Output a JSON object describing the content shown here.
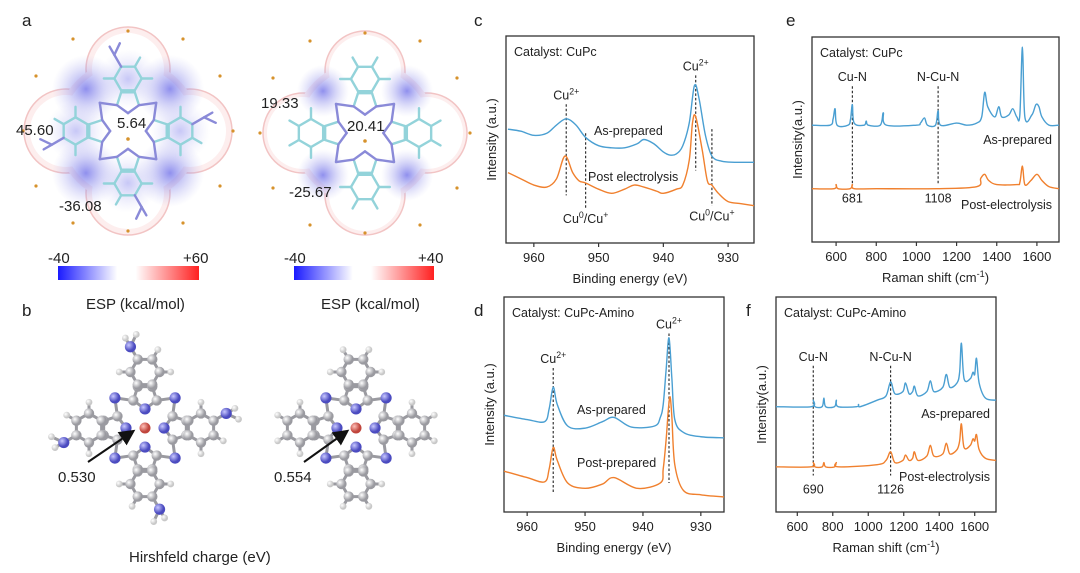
{
  "panel_labels": {
    "a": "a",
    "b": "b",
    "c": "c",
    "d": "d",
    "e": "e",
    "f": "f"
  },
  "panel_a": {
    "left": {
      "values": [
        "45.60",
        "5.64",
        "-36.08"
      ],
      "colorbar_min": "-40",
      "colorbar_max": "+60",
      "colorbar_label": "ESP (kcal/mol)"
    },
    "right": {
      "values": [
        "19.33",
        "20.41",
        "-25.67"
      ],
      "colorbar_min": "-40",
      "colorbar_max": "+40",
      "colorbar_label": "ESP (kcal/mol)"
    },
    "colorbar_colors": [
      "#1a1aff",
      "#ffffff",
      "#ff2020"
    ]
  },
  "panel_b": {
    "left_value": "0.530",
    "right_value": "0.554",
    "caption": "Hirshfeld charge (eV)",
    "atom_colors": {
      "C": "#b8b8bc",
      "N": "#6a6ad8",
      "H": "#f4f4f4",
      "Cu": "#d4685e"
    }
  },
  "chart_data": [
    {
      "panel": "c",
      "type": "line",
      "title": "Catalyst: CuPc",
      "xlabel": "Binding energy (eV)",
      "ylabel": "Intensity (a.u.)",
      "xlim": [
        964.3,
        926
      ],
      "ylim": [
        0,
        100
      ],
      "xticks": [
        960,
        950,
        940,
        930
      ],
      "xtick_labels": [
        "960",
        "950",
        "940",
        "930"
      ],
      "grid": false,
      "series": [
        {
          "name": "As-prepared",
          "color": "#4a9fd2",
          "x": [
            964,
            962,
            960,
            958,
            956.5,
            955,
            953.5,
            952,
            950,
            948,
            946,
            944,
            943,
            941.5,
            940,
            939,
            938,
            937,
            936,
            935.2,
            934.5,
            933.5,
            932.5,
            931,
            929,
            926
          ],
          "y": [
            55,
            54,
            52,
            53,
            57,
            60,
            57,
            51,
            47,
            46,
            46,
            48,
            50,
            48,
            44,
            42.5,
            43,
            47,
            58,
            76,
            70,
            52,
            42,
            39.5,
            39,
            39
          ]
        },
        {
          "name": "Post electrolysis",
          "color": "#f0802e",
          "x": [
            964,
            962,
            960,
            958,
            956.5,
            955.2,
            954,
            953,
            952,
            950,
            948,
            946,
            944.5,
            943,
            941,
            940,
            938,
            937,
            936,
            935.5,
            935,
            934,
            933.2,
            932.5,
            931.5,
            930,
            928,
            926
          ],
          "y": [
            34,
            31,
            28,
            27,
            31,
            42,
            34,
            30,
            29,
            26,
            24,
            26,
            28,
            27,
            25,
            24,
            26,
            28,
            40,
            58,
            61,
            45,
            30,
            28,
            24,
            20,
            19,
            18
          ]
        }
      ],
      "annotations": [
        {
          "x": 955,
          "y_range": [
            23,
            67
          ],
          "label": [
            {
              "t": "Cu"
            },
            {
              "t": "2+",
              "sup": true
            }
          ],
          "pos": "top"
        },
        {
          "x": 952,
          "y_range": [
            17,
            53
          ],
          "label": [
            {
              "t": "Cu"
            },
            {
              "t": "0",
              "sup": true
            },
            {
              "t": "/Cu"
            },
            {
              "t": "+",
              "sup": true
            }
          ],
          "pos": "bottom"
        },
        {
          "x": 935,
          "y_range": [
            35,
            81
          ],
          "label": [
            {
              "t": "Cu"
            },
            {
              "t": "2+",
              "sup": true
            }
          ],
          "pos": "top"
        },
        {
          "x": 932.5,
          "y_range": [
            18,
            55
          ],
          "label": [
            {
              "t": "Cu"
            },
            {
              "t": "0",
              "sup": true
            },
            {
              "t": "/Cu"
            },
            {
              "t": "+",
              "sup": true
            }
          ],
          "pos": "bottom"
        }
      ]
    },
    {
      "panel": "d",
      "type": "line",
      "title": "Catalyst: CuPc-Amino",
      "xlabel": "Binding energy (eV)",
      "ylabel": "Intensity (a.u.)",
      "xlim": [
        964,
        926
      ],
      "ylim": [
        0,
        100
      ],
      "xticks": [
        960,
        950,
        940,
        930
      ],
      "xtick_labels": [
        "960",
        "950",
        "940",
        "930"
      ],
      "grid": false,
      "series": [
        {
          "name": "As-prepared",
          "color": "#4a9fd2",
          "x": [
            964,
            960,
            957,
            956.2,
            955.5,
            954.8,
            953,
            950,
            947,
            945,
            942,
            938,
            937,
            936.5,
            936,
            935.5,
            935,
            934.5,
            933,
            930,
            926
          ],
          "y": [
            45,
            43,
            42,
            48,
            58,
            50,
            40,
            39,
            42,
            44,
            39.5,
            40,
            44,
            50,
            66,
            81,
            62,
            43,
            37,
            35,
            34.5
          ]
        },
        {
          "name": "Post-prepared",
          "color": "#f0802e",
          "x": [
            964,
            960,
            957,
            956.2,
            955.5,
            954.8,
            953,
            950,
            947,
            945,
            941,
            937,
            936.5,
            936,
            935.6,
            935.3,
            935,
            934.5,
            933,
            930,
            926
          ],
          "y": [
            19,
            16,
            14,
            20,
            30,
            24,
            13.5,
            11,
            13,
            16,
            11,
            13.5,
            20,
            33.5,
            48,
            53.5,
            44,
            22,
            10,
            8,
            7
          ]
        }
      ],
      "annotations": [
        {
          "x": 955.5,
          "y_range": [
            9,
            67
          ],
          "label": [
            {
              "t": "Cu"
            },
            {
              "t": "2+",
              "sup": true
            }
          ],
          "pos": "top"
        },
        {
          "x": 935.5,
          "y_range": [
            13.5,
            83
          ],
          "label": [
            {
              "t": "Cu"
            },
            {
              "t": "2+",
              "sup": true
            }
          ],
          "pos": "top"
        }
      ]
    },
    {
      "panel": "e",
      "type": "line",
      "title": "Catalyst: CuPc",
      "xlabel": [
        {
          "t": "Raman shift (cm"
        },
        {
          "t": "-1",
          "sup": true
        },
        {
          "t": ")"
        }
      ],
      "ylabel": "Intensity(a.u.)",
      "xlim": [
        480,
        1710
      ],
      "ylim": [
        0,
        100
      ],
      "xticks": [
        600,
        800,
        1000,
        1200,
        1400,
        1600
      ],
      "xtick_labels": [
        "600",
        "800",
        "1000",
        "1200",
        "1400",
        "1600"
      ],
      "grid": false,
      "series": [
        {
          "name": "As-prepared",
          "color": "#4a9fd2",
          "x": [
            480,
            570,
            585,
            595,
            605,
            660,
            672,
            681,
            690,
            740,
            750,
            760,
            820,
            835,
            850,
            1000,
            1020,
            1040,
            1055,
            1095,
            1108,
            1120,
            1200,
            1250,
            1300,
            1325,
            1340,
            1355,
            1390,
            1410,
            1425,
            1460,
            1480,
            1500,
            1515,
            1528,
            1540,
            1575,
            1595,
            1610,
            1625,
            1660,
            1710
          ],
          "y": [
            57,
            57,
            60,
            65,
            57,
            57,
            60,
            67,
            58,
            57,
            59,
            57,
            57,
            63,
            57,
            57,
            58,
            60.5,
            57,
            57,
            64,
            57,
            58,
            57,
            58,
            61,
            73,
            66,
            61,
            66,
            61,
            62,
            65,
            61,
            62,
            95,
            61,
            62,
            67,
            66,
            61,
            57,
            57
          ]
        },
        {
          "name": "Post-electrolysis",
          "color": "#f0802e",
          "x": [
            480,
            590,
            600,
            610,
            670,
            681,
            690,
            800,
            1100,
            1300,
            1320,
            1340,
            1360,
            1400,
            1500,
            1515,
            1528,
            1540,
            1570,
            1600,
            1625,
            1660,
            1710
          ],
          "y": [
            26,
            26,
            28,
            26,
            26,
            28,
            26,
            26,
            26,
            27,
            31,
            33,
            30,
            28,
            28,
            29,
            37,
            28,
            30,
            33,
            30,
            27,
            26
          ]
        }
      ],
      "annotations": [
        {
          "x": 681,
          "y_range": [
            28,
            76
          ],
          "label": [
            {
              "t": "Cu-N"
            }
          ],
          "pos": "top",
          "value_label": "681"
        },
        {
          "x": 1108,
          "y_range": [
            28,
            76
          ],
          "label": [
            {
              "t": "N-Cu-N"
            }
          ],
          "pos": "top",
          "value_label": "1108"
        }
      ]
    },
    {
      "panel": "f",
      "type": "line",
      "title": "Catalyst: CuPc-Amino",
      "xlabel": [
        {
          "t": "Raman shift (cm"
        },
        {
          "t": "-1",
          "sup": true
        },
        {
          "t": ")"
        }
      ],
      "ylabel": "Intensity(a.u.)",
      "xlim": [
        480,
        1720
      ],
      "ylim": [
        0,
        100
      ],
      "xticks": [
        600,
        800,
        1000,
        1200,
        1400,
        1600
      ],
      "xtick_labels": [
        "600",
        "800",
        "1000",
        "1200",
        "1400",
        "1600"
      ],
      "grid": false,
      "series": [
        {
          "name": "As-prepared",
          "color": "#4a9fd2",
          "x": [
            480,
            680,
            690,
            700,
            740,
            750,
            760,
            810,
            820,
            830,
            935,
            945,
            955,
            1050,
            1100,
            1126,
            1150,
            1195,
            1210,
            1230,
            1250,
            1260,
            1280,
            1330,
            1350,
            1370,
            1420,
            1440,
            1460,
            1500,
            1515,
            1525,
            1540,
            1575,
            1590,
            1600,
            1610,
            1625,
            1660,
            1720
          ],
          "y": [
            49,
            49,
            52,
            49,
            49,
            53,
            49,
            49,
            52,
            49,
            49,
            50,
            49,
            52,
            54,
            60.5,
            55,
            56,
            60,
            55,
            56,
            58.5,
            54,
            56,
            61,
            56,
            58,
            64,
            58,
            60,
            65,
            78.5,
            62,
            62,
            65,
            64,
            71.5,
            60,
            53,
            52
          ]
        },
        {
          "name": "Post-electrolysis",
          "color": "#f0802e",
          "x": [
            480,
            680,
            690,
            700,
            740,
            750,
            760,
            810,
            820,
            830,
            1050,
            1100,
            1126,
            1150,
            1195,
            1210,
            1230,
            1250,
            1260,
            1280,
            1330,
            1350,
            1370,
            1420,
            1440,
            1460,
            1500,
            1515,
            1525,
            1540,
            1575,
            1590,
            1600,
            1610,
            1625,
            1660,
            1720
          ],
          "y": [
            21,
            21,
            23,
            21,
            21,
            23,
            21,
            21,
            23,
            21,
            22,
            24,
            28,
            23,
            24,
            26.5,
            24,
            25,
            28,
            24,
            26,
            31,
            26,
            27,
            32,
            27,
            29,
            33,
            41,
            30,
            31,
            34,
            33,
            36,
            29,
            25,
            24
          ]
        }
      ],
      "annotations": [
        {
          "x": 690,
          "y_range": [
            17,
            68
          ],
          "label": [
            {
              "t": "Cu-N"
            }
          ],
          "pos": "top",
          "value_label": "690"
        },
        {
          "x": 1126,
          "y_range": [
            17,
            68
          ],
          "label": [
            {
              "t": "N-Cu-N"
            }
          ],
          "pos": "top",
          "value_label": "1126"
        }
      ]
    }
  ]
}
